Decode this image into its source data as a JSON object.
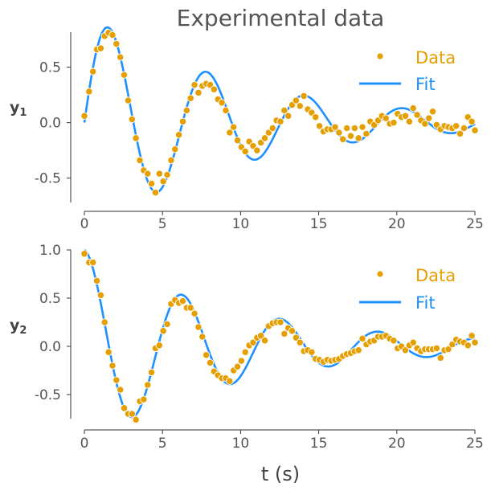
{
  "chart_data": [
    {
      "type": "scatter+line",
      "title": "Experimental data",
      "ylabel": "y",
      "ylabel_sub": "1",
      "xlabel": "",
      "xlim": [
        0,
        25
      ],
      "ylim": [
        -0.72,
        0.83
      ],
      "xticks": [
        "0",
        "5",
        "10",
        "15",
        "20",
        "25"
      ],
      "yticks": [
        "-0.5",
        "0.0",
        "0.5"
      ],
      "ytick_values": [
        -0.5,
        0.0,
        0.5
      ],
      "legend": {
        "placement": "top-right",
        "data_label": "Data",
        "fit_label": "Fit"
      },
      "colors": {
        "data": "#E69F00",
        "fit": "#1E90FF",
        "text": "#555555"
      },
      "fit": {
        "amplitude": 1.0,
        "decay": 0.1,
        "omega": 1.0
      },
      "series": [
        {
          "name": "Data",
          "kind": "scatter",
          "x": [
            0.0,
            0.3,
            0.55,
            0.8,
            1.05,
            1.3,
            1.55,
            1.8,
            2.05,
            2.3,
            2.55,
            2.8,
            3.05,
            3.3,
            3.55,
            3.8,
            4.05,
            4.3,
            4.55,
            4.8,
            5.05,
            5.3,
            5.55,
            5.8,
            6.05,
            6.3,
            6.55,
            6.8,
            7.05,
            7.3,
            7.55,
            7.8,
            8.05,
            8.3,
            8.55,
            8.8,
            9.05,
            9.3,
            9.55,
            9.8,
            10.05,
            10.3,
            10.55,
            10.8,
            11.05,
            11.3,
            11.55,
            11.8,
            12.05,
            12.3,
            12.55,
            12.8,
            13.05,
            13.3,
            13.55,
            13.8,
            14.05,
            14.3,
            14.55,
            14.8,
            15.05,
            15.3,
            15.55,
            15.8,
            16.05,
            16.3,
            16.55,
            16.8,
            17.05,
            17.3,
            17.55,
            17.8,
            18.05,
            18.3,
            18.55,
            18.8,
            19.05,
            19.3,
            19.55,
            19.8,
            20.05,
            20.3,
            20.55,
            20.8,
            21.05,
            21.3,
            21.55,
            21.8,
            22.05,
            22.3,
            22.55,
            22.8,
            23.05,
            23.3,
            23.55,
            23.8,
            24.05,
            24.3,
            24.55,
            24.8,
            25.0
          ],
          "y": [
            0.06,
            0.28,
            0.46,
            0.66,
            0.67,
            0.78,
            0.81,
            0.79,
            0.71,
            0.59,
            0.43,
            0.2,
            0.03,
            -0.14,
            -0.34,
            -0.43,
            -0.46,
            -0.55,
            -0.63,
            -0.46,
            -0.53,
            -0.47,
            -0.34,
            -0.24,
            -0.11,
            0.01,
            0.11,
            0.22,
            0.34,
            0.27,
            0.33,
            0.35,
            0.34,
            0.3,
            0.21,
            0.18,
            0.11,
            -0.09,
            -0.04,
            -0.16,
            -0.22,
            -0.26,
            -0.17,
            -0.21,
            -0.25,
            -0.18,
            -0.14,
            -0.09,
            -0.05,
            0.02,
            0.01,
            0.11,
            0.06,
            0.16,
            0.2,
            0.15,
            0.24,
            0.12,
            0.09,
            0.05,
            -0.03,
            -0.08,
            -0.06,
            -0.06,
            -0.04,
            -0.09,
            -0.15,
            -0.05,
            -0.12,
            -0.05,
            -0.14,
            -0.04,
            -0.1,
            0.01,
            -0.02,
            0.02,
            0.06,
            0.04,
            -0.01,
            0.0,
            0.08,
            0.05,
            0.06,
            0.01,
            0.13,
            0.07,
            0.02,
            -0.01,
            0.04,
            0.1,
            -0.02,
            -0.06,
            -0.03,
            -0.04,
            -0.05,
            -0.03,
            -0.1,
            -0.05,
            0.05,
            0.01,
            -0.07
          ]
        },
        {
          "name": "Fit",
          "kind": "line"
        }
      ]
    },
    {
      "type": "scatter+line",
      "title": "",
      "ylabel": "y",
      "ylabel_sub": "2",
      "xlabel": "t (s)",
      "xlim": [
        0,
        25
      ],
      "ylim": [
        -0.75,
        1.0
      ],
      "xticks": [
        "0",
        "5",
        "10",
        "15",
        "20",
        "25"
      ],
      "yticks": [
        "-0.5",
        "0.0",
        "0.5",
        "1.0"
      ],
      "ytick_values": [
        -0.5,
        0.0,
        0.5,
        1.0
      ],
      "legend": {
        "placement": "top-right",
        "data_label": "Data",
        "fit_label": "Fit"
      },
      "colors": {
        "data": "#E69F00",
        "fit": "#1E90FF",
        "text": "#555555"
      },
      "fit": {
        "amplitude": 1.0,
        "decay": 0.1,
        "omega": 1.0
      },
      "series": [
        {
          "name": "Data",
          "kind": "scatter",
          "x": [
            0.0,
            0.3,
            0.55,
            0.8,
            1.05,
            1.3,
            1.55,
            1.8,
            2.05,
            2.3,
            2.55,
            2.8,
            3.05,
            3.3,
            3.55,
            3.8,
            4.05,
            4.3,
            4.55,
            4.8,
            5.05,
            5.3,
            5.55,
            5.8,
            6.05,
            6.3,
            6.55,
            6.8,
            7.05,
            7.3,
            7.55,
            7.8,
            8.05,
            8.3,
            8.55,
            8.8,
            9.05,
            9.3,
            9.55,
            9.8,
            10.05,
            10.3,
            10.55,
            10.8,
            11.05,
            11.3,
            11.55,
            11.8,
            12.05,
            12.3,
            12.55,
            12.8,
            13.05,
            13.3,
            13.55,
            13.8,
            14.05,
            14.3,
            14.55,
            14.8,
            15.05,
            15.3,
            15.55,
            15.8,
            16.05,
            16.3,
            16.55,
            16.8,
            17.05,
            17.3,
            17.55,
            17.8,
            18.05,
            18.3,
            18.55,
            18.8,
            19.05,
            19.3,
            19.55,
            19.8,
            20.05,
            20.3,
            20.55,
            20.8,
            21.05,
            21.3,
            21.55,
            21.8,
            22.05,
            22.3,
            22.55,
            22.8,
            23.05,
            23.3,
            23.55,
            23.8,
            24.05,
            24.3,
            24.55,
            24.8,
            25.0
          ],
          "y": [
            0.96,
            0.87,
            0.87,
            0.68,
            0.53,
            0.25,
            -0.06,
            -0.2,
            -0.35,
            -0.45,
            -0.64,
            -0.7,
            -0.7,
            -0.76,
            -0.57,
            -0.55,
            -0.4,
            -0.27,
            -0.02,
            0.01,
            0.16,
            0.23,
            0.44,
            0.48,
            0.45,
            0.47,
            0.4,
            0.4,
            0.34,
            0.2,
            0.1,
            -0.09,
            -0.17,
            -0.26,
            -0.3,
            -0.33,
            -0.33,
            -0.36,
            -0.25,
            -0.21,
            -0.15,
            -0.06,
            0.01,
            0.04,
            0.09,
            0.11,
            0.06,
            0.21,
            0.24,
            0.25,
            0.25,
            0.13,
            0.19,
            0.16,
            0.09,
            0.04,
            -0.05,
            -0.04,
            -0.06,
            -0.13,
            -0.14,
            -0.16,
            -0.14,
            -0.15,
            -0.14,
            -0.13,
            -0.1,
            -0.08,
            -0.07,
            -0.05,
            -0.04,
            0.08,
            0.02,
            0.05,
            0.06,
            0.1,
            0.1,
            0.11,
            0.08,
            0.06,
            -0.02,
            0.0,
            -0.04,
            0.01,
            0.04,
            -0.02,
            -0.05,
            -0.03,
            -0.03,
            -0.03,
            -0.02,
            -0.12,
            -0.04,
            -0.03,
            0.02,
            0.07,
            0.05,
            0.04,
            0.01,
            0.11,
            0.04
          ]
        },
        {
          "name": "Fit",
          "kind": "line"
        }
      ]
    }
  ]
}
